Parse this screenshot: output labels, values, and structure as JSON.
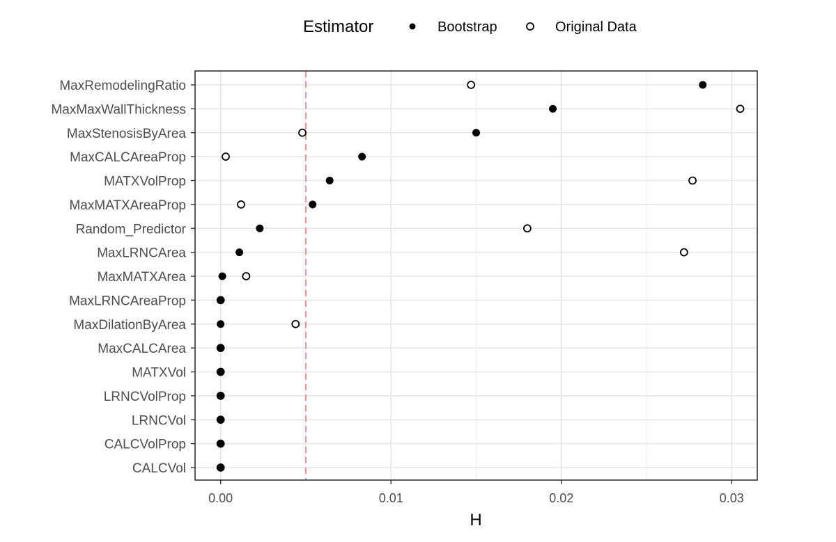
{
  "chart_data": {
    "type": "scatter",
    "xlabel": "H",
    "ylabel": "",
    "xlim": [
      -0.0015,
      0.0315
    ],
    "xticks": [
      0.0,
      0.01,
      0.02,
      0.03
    ],
    "xtick_labels": [
      "0.00",
      "0.01",
      "0.02",
      "0.03"
    ],
    "grid": true,
    "legend": {
      "title": "Estimator",
      "position": "top"
    },
    "reference_line": {
      "x": 0.005,
      "style": "dashed",
      "color": "#e8948c"
    },
    "categories": [
      "MaxRemodelingRatio",
      "MaxMaxWallThickness",
      "MaxStenosisByArea",
      "MaxCALCAreaProp",
      "MATXVolProp",
      "MaxMATXAreaProp",
      "Random_Predictor",
      "MaxLRNCArea",
      "MaxMATXArea",
      "MaxLRNCAreaProp",
      "MaxDilationByArea",
      "MaxCALCArea",
      "MATXVol",
      "LRNCVolProp",
      "LRNCVol",
      "CALCVolProp",
      "CALCVol"
    ],
    "series": [
      {
        "name": "Bootstrap",
        "marker": "filled",
        "values": [
          0.0283,
          0.0195,
          0.015,
          0.0083,
          0.0064,
          0.0054,
          0.0023,
          0.0011,
          0.0001,
          0.0,
          0.0,
          0.0,
          0.0,
          0.0,
          0.0,
          0.0,
          0.0
        ]
      },
      {
        "name": "Original Data",
        "marker": "open",
        "values": [
          0.0147,
          0.0305,
          0.0048,
          0.0003,
          0.0277,
          0.0012,
          0.018,
          0.0272,
          0.0015,
          0.0,
          0.0044,
          0.0,
          0.0,
          0.0,
          0.0,
          0.0,
          0.0
        ]
      }
    ]
  }
}
